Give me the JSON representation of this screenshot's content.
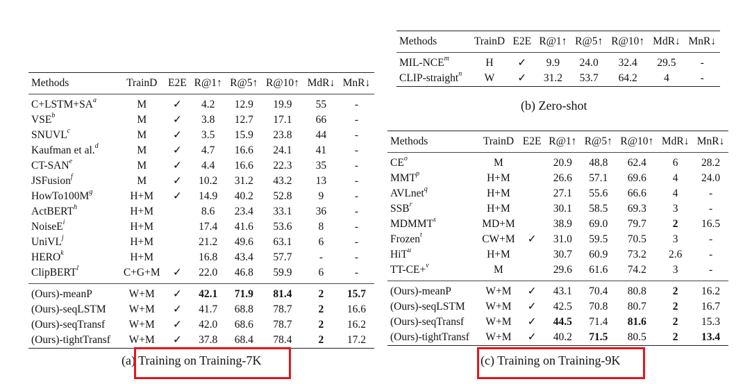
{
  "table_a": {
    "headers": [
      "Methods",
      "TrainD",
      "E2E",
      "R@1↑",
      "R@5↑",
      "R@10↑",
      "MdR↓",
      "MnR↓"
    ],
    "groups": [
      [
        {
          "name": "C+LSTM+SA",
          "sup": "a",
          "cells": [
            "M",
            "✓",
            "4.2",
            "12.9",
            "19.9",
            "55",
            "-"
          ]
        },
        {
          "name": "VSE",
          "sup": "b",
          "cells": [
            "M",
            "✓",
            "3.8",
            "12.7",
            "17.1",
            "66",
            "-"
          ]
        },
        {
          "name": "SNUVL",
          "sup": "c",
          "cells": [
            "M",
            "✓",
            "3.5",
            "15.9",
            "23.8",
            "44",
            "-"
          ]
        },
        {
          "name": "Kaufman et al.",
          "sup": "d",
          "cells": [
            "M",
            "✓",
            "4.7",
            "16.6",
            "24.1",
            "41",
            "-"
          ]
        },
        {
          "name": "CT-SAN",
          "sup": "e",
          "cells": [
            "M",
            "✓",
            "4.4",
            "16.6",
            "22.3",
            "35",
            "-"
          ]
        },
        {
          "name": "JSFusion",
          "sup": "f",
          "cells": [
            "M",
            "✓",
            "10.2",
            "31.2",
            "43.2",
            "13",
            "-"
          ]
        },
        {
          "name": "HowTo100M",
          "sup": "g",
          "cells": [
            "H+M",
            "✓",
            "14.9",
            "40.2",
            "52.8",
            "9",
            "-"
          ]
        },
        {
          "name": "ActBERT",
          "sup": "h",
          "cells": [
            "H+M",
            "",
            "8.6",
            "23.4",
            "33.1",
            "36",
            "-"
          ]
        },
        {
          "name": "NoiseE",
          "sup": "i",
          "cells": [
            "H+M",
            "",
            "17.4",
            "41.6",
            "53.6",
            "8",
            "-"
          ]
        },
        {
          "name": "UniVL",
          "sup": "j",
          "cells": [
            "H+M",
            "",
            "21.2",
            "49.6",
            "63.1",
            "6",
            "-"
          ]
        },
        {
          "name": "HERO",
          "sup": "k",
          "cells": [
            "H+M",
            "",
            "16.8",
            "43.4",
            "57.7",
            "-",
            "-"
          ]
        },
        {
          "name": "ClipBERT",
          "sup": "l",
          "cells": [
            "C+G+M",
            "✓",
            "22.0",
            "46.8",
            "59.9",
            "6",
            "-"
          ]
        }
      ],
      [
        {
          "name": "(Ours)-meanP",
          "sup": "",
          "cells": [
            "W+M",
            "✓",
            "42.1",
            "71.9",
            "81.4",
            "2",
            "15.7"
          ],
          "bold": [
            3,
            4,
            5,
            6,
            7
          ]
        },
        {
          "name": "(Ours)-seqLSTM",
          "sup": "",
          "cells": [
            "W+M",
            "✓",
            "41.7",
            "68.8",
            "78.7",
            "2",
            "16.6"
          ],
          "bold": [
            6
          ]
        },
        {
          "name": "(Ours)-seqTransf",
          "sup": "",
          "cells": [
            "W+M",
            "✓",
            "42.0",
            "68.6",
            "78.7",
            "2",
            "16.2"
          ],
          "bold": [
            6
          ]
        },
        {
          "name": "(Ours)-tightTransf",
          "sup": "",
          "cells": [
            "W+M",
            "✓",
            "37.8",
            "68.4",
            "78.4",
            "2",
            "17.2"
          ],
          "bold": [
            6
          ]
        }
      ]
    ],
    "caption": "(a) Training on Training-7K"
  },
  "table_b": {
    "headers": [
      "Methods",
      "TrainD",
      "E2E",
      "R@1↑",
      "R@5↑",
      "R@10↑",
      "MdR↓",
      "MnR↓"
    ],
    "groups": [
      [
        {
          "name": "MIL-NCE",
          "sup": "m",
          "cells": [
            "H",
            "✓",
            "9.9",
            "24.0",
            "32.4",
            "29.5",
            "-"
          ]
        },
        {
          "name": "CLIP-straight",
          "sup": "n",
          "cells": [
            "W",
            "✓",
            "31.2",
            "53.7",
            "64.2",
            "4",
            "-"
          ]
        }
      ]
    ],
    "caption": "(b) Zero-shot"
  },
  "table_c": {
    "headers": [
      "Methods",
      "TrainD",
      "E2E",
      "R@1↑",
      "R@5↑",
      "R@10↑",
      "MdR↓",
      "MnR↓"
    ],
    "groups": [
      [
        {
          "name": "CE",
          "sup": "o",
          "cells": [
            "M",
            "",
            "20.9",
            "48.8",
            "62.4",
            "6",
            "28.2"
          ]
        },
        {
          "name": "MMT",
          "sup": "p",
          "cells": [
            "H+M",
            "",
            "26.6",
            "57.1",
            "69.6",
            "4",
            "24.0"
          ]
        },
        {
          "name": "AVLnet",
          "sup": "q",
          "cells": [
            "H+M",
            "",
            "27.1",
            "55.6",
            "66.6",
            "4",
            "-"
          ]
        },
        {
          "name": "SSB",
          "sup": "r",
          "cells": [
            "H+M",
            "",
            "30.1",
            "58.5",
            "69.3",
            "3",
            "-"
          ]
        },
        {
          "name": "MDMMT",
          "sup": "s",
          "cells": [
            "MD+M",
            "",
            "38.9",
            "69.0",
            "79.7",
            "2",
            "16.5"
          ],
          "bold": [
            6
          ]
        },
        {
          "name": "Frozen",
          "sup": "t",
          "cells": [
            "CW+M",
            "✓",
            "31.0",
            "59.5",
            "70.5",
            "3",
            "-"
          ]
        },
        {
          "name": "HiT",
          "sup": "u",
          "cells": [
            "H+M",
            "",
            "30.7",
            "60.9",
            "73.2",
            "2.6",
            "-"
          ]
        },
        {
          "name": "TT-CE+",
          "sup": "v",
          "cells": [
            "M",
            "",
            "29.6",
            "61.6",
            "74.2",
            "3",
            "-"
          ]
        }
      ],
      [
        {
          "name": "(Ours)-meanP",
          "sup": "",
          "cells": [
            "W+M",
            "✓",
            "43.1",
            "70.4",
            "80.8",
            "2",
            "16.2"
          ],
          "bold": [
            6
          ]
        },
        {
          "name": "(Ours)-seqLSTM",
          "sup": "",
          "cells": [
            "W+M",
            "✓",
            "42.5",
            "70.8",
            "80.7",
            "2",
            "16.7"
          ],
          "bold": [
            6
          ]
        },
        {
          "name": "(Ours)-seqTransf",
          "sup": "",
          "cells": [
            "W+M",
            "✓",
            "44.5",
            "71.4",
            "81.6",
            "2",
            "15.3"
          ],
          "bold": [
            3,
            5,
            6
          ]
        },
        {
          "name": "(Ours)-tightTransf",
          "sup": "",
          "cells": [
            "W+M",
            "✓",
            "40.2",
            "71.5",
            "80.5",
            "2",
            "13.4"
          ],
          "bold": [
            4,
            6,
            7
          ]
        }
      ]
    ],
    "caption": "(c) Training on Training-9K"
  }
}
